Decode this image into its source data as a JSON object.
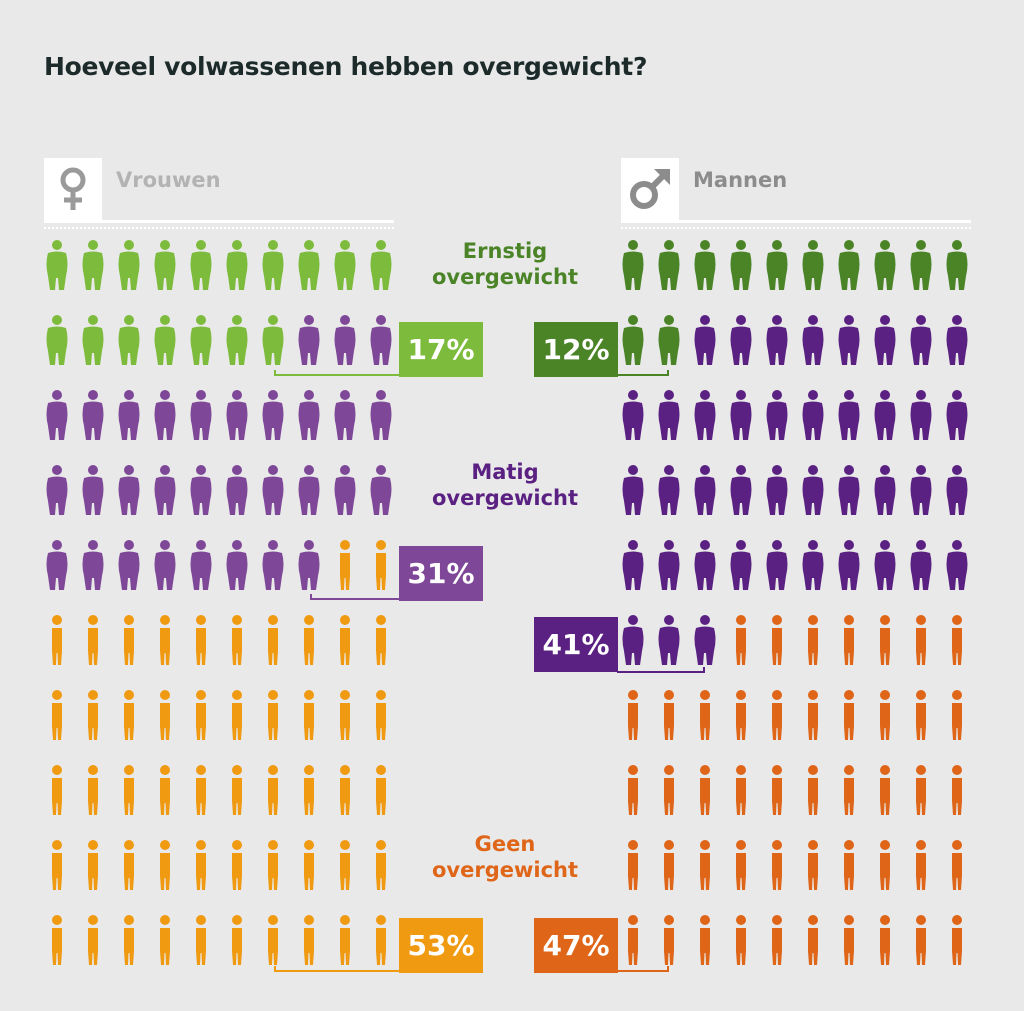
{
  "title": "Hoeveel volwassenen hebben overgewicht?",
  "colors": {
    "background": "#e9e9e9",
    "women_severe": "#7dbb3c",
    "women_moderate": "#7e4798",
    "women_none": "#f09a12",
    "men_severe": "#4a8427",
    "men_moderate": "#5a2182",
    "men_none": "#df6518",
    "label_severe": "#4a8427",
    "label_moderate": "#5a2182",
    "label_none": "#df6518",
    "gender_label": "#b3b3b3",
    "gender_label_men": "#8c8c8c"
  },
  "women": {
    "label": "Vrouwen",
    "icon": "female-symbol-icon"
  },
  "men": {
    "label": "Mannen",
    "icon": "male-symbol-icon"
  },
  "categories": {
    "severe": {
      "line1": "Ernstig",
      "line2": "overgewicht"
    },
    "moderate": {
      "line1": "Matig",
      "line2": "overgewicht"
    },
    "none": {
      "line1": "Geen",
      "line2": "overgewicht"
    }
  },
  "percentages": {
    "women_severe": "17%",
    "women_moderate": "31%",
    "women_none": "53%",
    "men_severe": "12%",
    "men_moderate": "41%",
    "men_none": "47%"
  },
  "chart_data": {
    "type": "pictogram",
    "title": "Hoeveel volwassenen hebben overgewicht?",
    "grid": {
      "rows": 10,
      "cols": 10,
      "unit": "1 person = 1%"
    },
    "categories": [
      "Ernstig overgewicht",
      "Matig overgewicht",
      "Geen overgewicht"
    ],
    "series": [
      {
        "name": "Vrouwen",
        "values": [
          17,
          31,
          53
        ],
        "icon_counts": [
          17,
          31,
          52
        ]
      },
      {
        "name": "Mannen",
        "values": [
          12,
          41,
          47
        ],
        "icon_counts": [
          12,
          41,
          47
        ]
      }
    ],
    "legend": [
      "Vrouwen",
      "Mannen"
    ]
  }
}
